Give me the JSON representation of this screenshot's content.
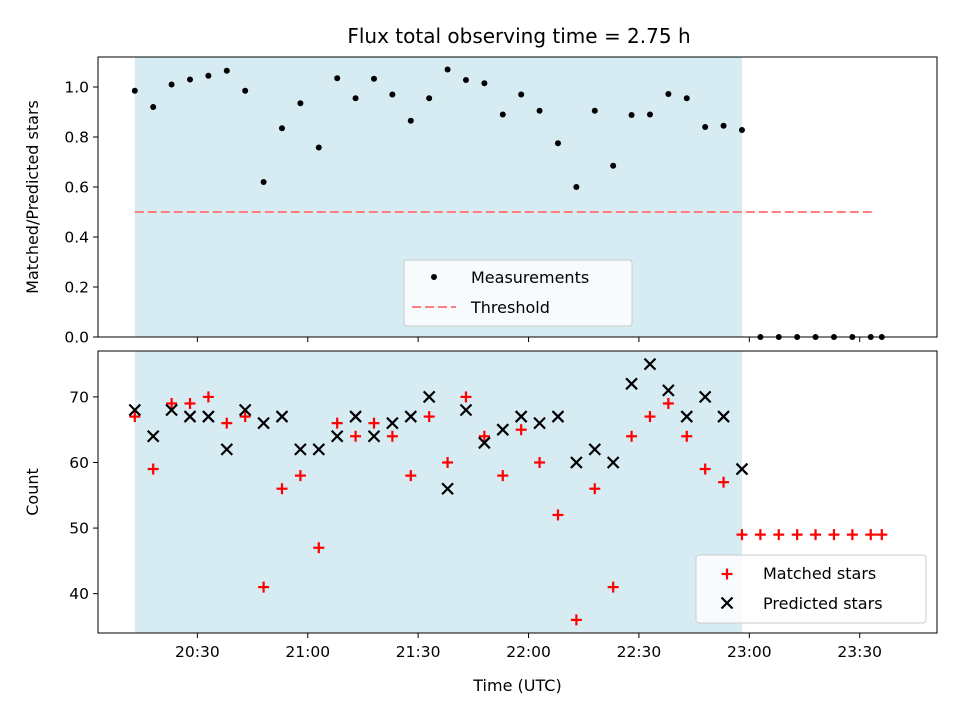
{
  "title": "Flux total observing time = 2.75 h",
  "colors": {
    "band": "#add8e6",
    "measurement": "#000000",
    "threshold": "#ff7f7f",
    "matched": "#ff0000",
    "predicted": "#000000"
  },
  "chart_data": [
    {
      "type": "scatter",
      "panel": "top",
      "title": "Flux total observing time = 2.75 h",
      "xlabel": "",
      "ylabel": "Matched/Predicted stars",
      "ylim": [
        0,
        1.12
      ],
      "yticks": [
        0.0,
        0.2,
        0.4,
        0.6,
        0.8,
        1.0
      ],
      "ytick_labels": [
        "0.0",
        "0.2",
        "0.4",
        "0.6",
        "0.8",
        "1.0"
      ],
      "observing_window": [
        "20:13",
        "22:58"
      ],
      "legend": {
        "placement": "lower center",
        "entries": [
          "Measurements",
          "Threshold"
        ]
      },
      "threshold": {
        "name": "Threshold",
        "value": 0.5,
        "x_range": [
          "20:13",
          "23:34"
        ]
      },
      "series": [
        {
          "name": "Measurements",
          "x": [
            "20:13",
            "20:18",
            "20:23",
            "20:28",
            "20:33",
            "20:38",
            "20:43",
            "20:48",
            "20:53",
            "20:58",
            "21:03",
            "21:08",
            "21:13",
            "21:18",
            "21:23",
            "21:28",
            "21:33",
            "21:38",
            "21:43",
            "21:48",
            "21:53",
            "21:58",
            "22:03",
            "22:08",
            "22:13",
            "22:18",
            "22:23",
            "22:28",
            "22:33",
            "22:38",
            "22:43",
            "22:48",
            "22:53",
            "22:58",
            "23:03",
            "23:08",
            "23:13",
            "23:18",
            "23:23",
            "23:28",
            "23:33",
            "23:36"
          ],
          "values": [
            0.985,
            0.92,
            1.01,
            1.03,
            1.045,
            1.065,
            0.985,
            0.62,
            0.835,
            0.935,
            0.758,
            1.035,
            0.955,
            1.033,
            0.97,
            0.865,
            0.955,
            1.07,
            1.028,
            1.015,
            0.89,
            0.97,
            0.905,
            0.775,
            0.6,
            0.905,
            0.685,
            0.888,
            0.89,
            0.972,
            0.955,
            0.84,
            0.845,
            0.828,
            0,
            0,
            0,
            0,
            0,
            0,
            0,
            0
          ]
        }
      ]
    },
    {
      "type": "scatter",
      "panel": "bottom",
      "xlabel": "Time (UTC)",
      "ylabel": "Count",
      "ylim": [
        34,
        77
      ],
      "yticks": [
        40,
        50,
        60,
        70
      ],
      "ytick_labels": [
        "40",
        "50",
        "60",
        "70"
      ],
      "xlim": [
        "20:03",
        "23:51"
      ],
      "xticks": [
        "20:30",
        "21:00",
        "21:30",
        "22:00",
        "22:30",
        "23:00",
        "23:30"
      ],
      "xtick_labels": [
        "20:30",
        "21:00",
        "21:30",
        "22:00",
        "22:30",
        "23:00",
        "23:30"
      ],
      "observing_window": [
        "20:13",
        "22:58"
      ],
      "legend": {
        "placement": "lower right",
        "entries": [
          "Matched stars",
          "Predicted stars"
        ]
      },
      "series": [
        {
          "name": "Matched stars",
          "x": [
            "20:13",
            "20:18",
            "20:23",
            "20:28",
            "20:33",
            "20:38",
            "20:43",
            "20:48",
            "20:53",
            "20:58",
            "21:03",
            "21:08",
            "21:13",
            "21:18",
            "21:23",
            "21:28",
            "21:33",
            "21:38",
            "21:43",
            "21:48",
            "21:53",
            "21:58",
            "22:03",
            "22:08",
            "22:13",
            "22:18",
            "22:23",
            "22:28",
            "22:33",
            "22:38",
            "22:43",
            "22:48",
            "22:53",
            "22:58",
            "23:03",
            "23:08",
            "23:13",
            "23:18",
            "23:23",
            "23:28",
            "23:33",
            "23:36"
          ],
          "values": [
            67,
            59,
            69,
            69,
            70,
            66,
            67,
            41,
            56,
            58,
            47,
            66,
            64,
            66,
            64,
            58,
            67,
            60,
            70,
            64,
            58,
            65,
            60,
            52,
            36,
            56,
            41,
            64,
            67,
            69,
            64,
            59,
            57,
            49,
            49,
            49,
            49,
            49,
            49,
            49,
            49,
            49
          ]
        },
        {
          "name": "Predicted stars",
          "x": [
            "20:13",
            "20:18",
            "20:23",
            "20:28",
            "20:33",
            "20:38",
            "20:43",
            "20:48",
            "20:53",
            "20:58",
            "21:03",
            "21:08",
            "21:13",
            "21:18",
            "21:23",
            "21:28",
            "21:33",
            "21:38",
            "21:43",
            "21:48",
            "21:53",
            "21:58",
            "22:03",
            "22:08",
            "22:13",
            "22:18",
            "22:23",
            "22:28",
            "22:33",
            "22:38",
            "22:43",
            "22:48",
            "22:53",
            "22:58"
          ],
          "values": [
            68,
            64,
            68,
            67,
            67,
            62,
            68,
            66,
            67,
            62,
            62,
            64,
            67,
            64,
            66,
            67,
            70,
            56,
            68,
            63,
            65,
            67,
            66,
            67,
            60,
            62,
            60,
            72,
            75,
            71,
            67,
            70,
            67,
            59
          ]
        }
      ]
    }
  ]
}
